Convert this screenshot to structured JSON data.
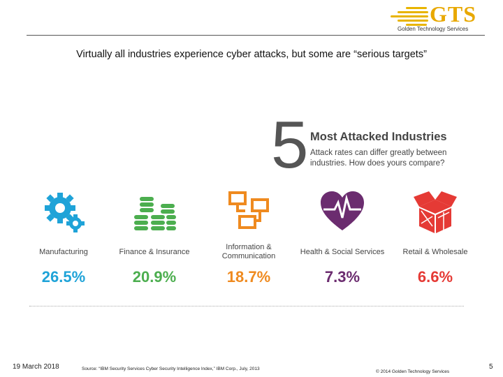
{
  "logo": {
    "text": "GTS",
    "subtitle": "Golden Technology Services",
    "color": "#e8a800"
  },
  "headline": "Virtually all industries experience cyber attacks, but some are “serious targets”",
  "infographic": {
    "big_number": "5",
    "title": "Most Attacked Industries",
    "subtitle": "Attack rates can differ greatly between industries. How does yours compare?",
    "industries": [
      {
        "label": "Manufacturing",
        "value": "26.5%",
        "color": "#1fa3d8",
        "icon": "gears-icon"
      },
      {
        "label": "Finance & Insurance",
        "value": "20.9%",
        "color": "#4cae4f",
        "icon": "coin-stacks-icon"
      },
      {
        "label": "Information & Communication",
        "value": "18.7%",
        "color": "#ef8a1f",
        "icon": "network-devices-icon"
      },
      {
        "label": "Health & Social Services",
        "value": "7.3%",
        "color": "#6b2c6f",
        "icon": "heart-pulse-icon"
      },
      {
        "label": "Retail & Wholesale",
        "value": "6.6%",
        "color": "#e53a35",
        "icon": "open-box-icon"
      }
    ]
  },
  "footer": {
    "date": "19 March 2018",
    "source": "Source: “IBM Security Services Cyber Security Intelligence Index,” IBM Corp., July, 2013",
    "copyright": "© 2014 Golden Technology Services",
    "page": "5"
  }
}
